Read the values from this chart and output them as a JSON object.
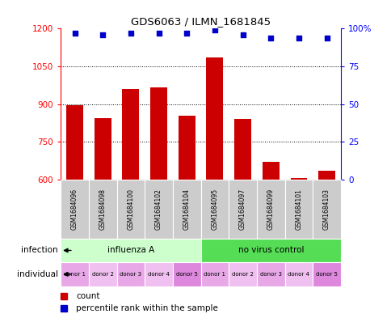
{
  "title": "GDS6063 / ILMN_1681845",
  "samples": [
    "GSM1684096",
    "GSM1684098",
    "GSM1684100",
    "GSM1684102",
    "GSM1684104",
    "GSM1684095",
    "GSM1684097",
    "GSM1684099",
    "GSM1684101",
    "GSM1684103"
  ],
  "counts": [
    895,
    845,
    960,
    965,
    855,
    1085,
    840,
    670,
    605,
    635
  ],
  "percentiles": [
    97,
    96,
    97,
    97,
    97,
    99,
    96,
    94,
    94,
    94
  ],
  "ylim_left": [
    600,
    1200
  ],
  "ylim_right": [
    0,
    100
  ],
  "yticks_left": [
    600,
    750,
    900,
    1050,
    1200
  ],
  "yticks_right": [
    0,
    25,
    50,
    75,
    100
  ],
  "infection_groups": [
    {
      "label": "influenza A",
      "start": 0,
      "end": 5,
      "color": "#CCFFCC"
    },
    {
      "label": "no virus control",
      "start": 5,
      "end": 10,
      "color": "#55DD55"
    }
  ],
  "individual_labels": [
    "donor 1",
    "donor 2",
    "donor 3",
    "donor 4",
    "donor 5",
    "donor 1",
    "donor 2",
    "donor 3",
    "donor 4",
    "donor 5"
  ],
  "individual_colors": [
    "#E8A8E8",
    "#F0C0F0",
    "#E8A8E8",
    "#F0C0F0",
    "#DD88DD",
    "#E8A8E8",
    "#F0C0F0",
    "#E8A8E8",
    "#F0C0F0",
    "#DD88DD"
  ],
  "bar_color": "#CC0000",
  "dot_color": "#0000CC",
  "bar_width": 0.6,
  "count_label": "count",
  "percentile_label": "percentile rank within the sample",
  "infection_row_label": "infection",
  "individual_row_label": "individual",
  "sample_box_color": "#CCCCCC",
  "grid_ticks": [
    750,
    900,
    1050
  ]
}
